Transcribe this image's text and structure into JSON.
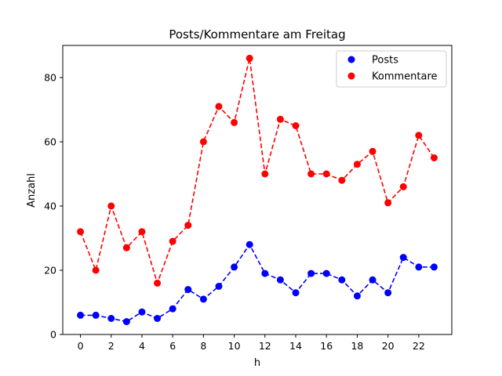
{
  "chart_data": {
    "type": "line",
    "title": "Posts/Kommentare am Freitag",
    "xlabel": "h",
    "ylabel": "Anzahl",
    "x": [
      0,
      1,
      2,
      3,
      4,
      5,
      6,
      7,
      8,
      9,
      10,
      11,
      12,
      13,
      14,
      15,
      16,
      17,
      18,
      19,
      20,
      21,
      22,
      23
    ],
    "xlim": [
      -1.15,
      24.15
    ],
    "ylim": [
      0,
      90
    ],
    "xticks": [
      0,
      2,
      4,
      6,
      8,
      10,
      12,
      14,
      16,
      18,
      20,
      22
    ],
    "yticks": [
      0,
      20,
      40,
      60,
      80
    ],
    "grid": false,
    "legend_position": "top-right",
    "series": [
      {
        "name": "Posts",
        "color": "#0000ff",
        "values": [
          6,
          6,
          5,
          4,
          7,
          5,
          8,
          14,
          11,
          15,
          21,
          28,
          19,
          17,
          13,
          19,
          19,
          17,
          12,
          17,
          13,
          24,
          21,
          21
        ]
      },
      {
        "name": "Kommentare",
        "color": "#ff0000",
        "values": [
          32,
          20,
          40,
          27,
          32,
          16,
          29,
          34,
          60,
          71,
          66,
          86,
          50,
          67,
          65,
          50,
          50,
          48,
          53,
          57,
          41,
          46,
          62,
          55
        ]
      }
    ]
  }
}
